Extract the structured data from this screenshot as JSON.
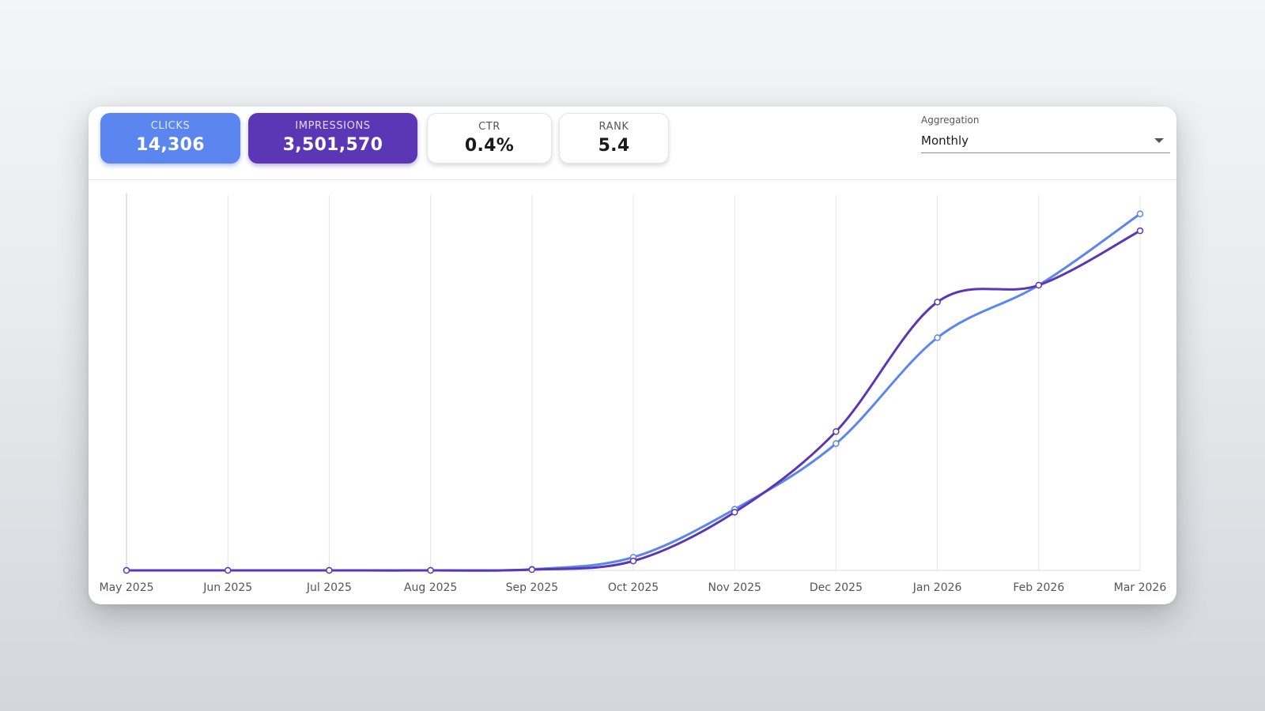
{
  "stats": {
    "clicks": {
      "label": "CLICKS",
      "value": "14,306"
    },
    "impressions": {
      "label": "IMPRESSIONS",
      "value": "3,501,570"
    },
    "ctr": {
      "label": "CTR",
      "value": "0.4%"
    },
    "rank": {
      "label": "RANK",
      "value": "5.4"
    }
  },
  "aggregation": {
    "label": "Aggregation",
    "value": "Monthly"
  },
  "colors": {
    "clicks": "#5b86ef",
    "impressions": "#5b37b5",
    "grid": "#e2e4e7"
  },
  "icons": {
    "dropdown": "caret-down-icon"
  },
  "chart_data": {
    "type": "line",
    "categories": [
      "May 2025",
      "Jun 2025",
      "Jul 2025",
      "Aug 2025",
      "Sep 2025",
      "Oct 2025",
      "Nov 2025",
      "Dec 2025",
      "Jan 2026",
      "Feb 2026",
      "Mar 2026"
    ],
    "series": [
      {
        "key": "clicks",
        "values": [
          0,
          0,
          0,
          0,
          0.3,
          3.5,
          16.3,
          33.8,
          62.0,
          76.0,
          95.0
        ]
      },
      {
        "key": "impressions",
        "values": [
          0,
          0,
          0,
          0,
          0.2,
          2.5,
          15.5,
          37.0,
          71.5,
          76.0,
          90.5
        ]
      }
    ],
    "ylim": [
      0,
      100
    ],
    "grid": "vertical",
    "y_axis_labels": false,
    "legend": "none"
  }
}
